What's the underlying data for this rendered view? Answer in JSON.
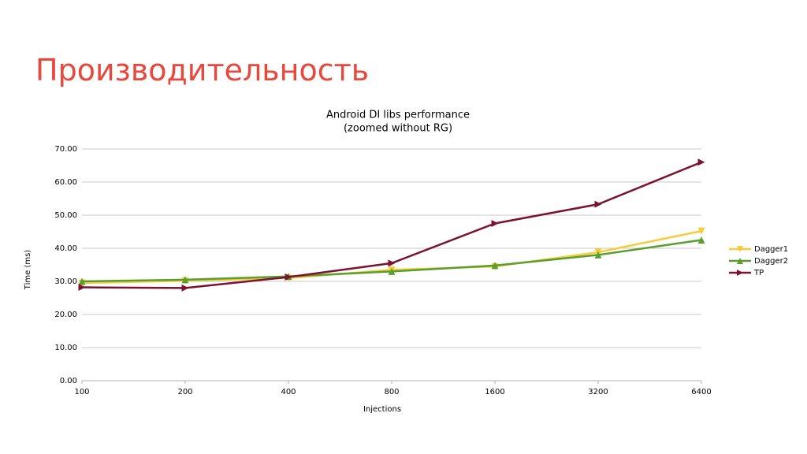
{
  "slide_title": "Производительность",
  "chart_data": {
    "type": "line",
    "title": "Android DI libs performance",
    "subtitle": "(zoomed without RG)",
    "xlabel": "Injections",
    "ylabel": "Time (ms)",
    "categories": [
      "100",
      "200",
      "400",
      "800",
      "1600",
      "3200",
      "6400"
    ],
    "series": [
      {
        "name": "Dagger1",
        "color": "#f7cc3c",
        "marker": "down",
        "values": [
          29.5,
          30.2,
          31.0,
          33.5,
          34.5,
          38.8,
          45.2
        ]
      },
      {
        "name": "Dagger2",
        "color": "#5a9e2f",
        "marker": "up",
        "values": [
          30.0,
          30.5,
          31.5,
          33.0,
          34.8,
          38.0,
          42.5
        ]
      },
      {
        "name": "TP",
        "color": "#7b1230",
        "marker": "right",
        "values": [
          28.2,
          28.0,
          31.3,
          35.5,
          47.5,
          53.3,
          66.0
        ]
      }
    ],
    "ylim": [
      0,
      70
    ],
    "yticks": [
      {
        "value": 0,
        "label": "0.00"
      },
      {
        "value": 10,
        "label": "10.00"
      },
      {
        "value": 20,
        "label": "20.00"
      },
      {
        "value": 30,
        "label": "30.00"
      },
      {
        "value": 40,
        "label": "40.00"
      },
      {
        "value": 50,
        "label": "50.00"
      },
      {
        "value": 60,
        "label": "60.00"
      },
      {
        "value": 70,
        "label": "70.00"
      }
    ],
    "grid": true,
    "legend": "right"
  }
}
